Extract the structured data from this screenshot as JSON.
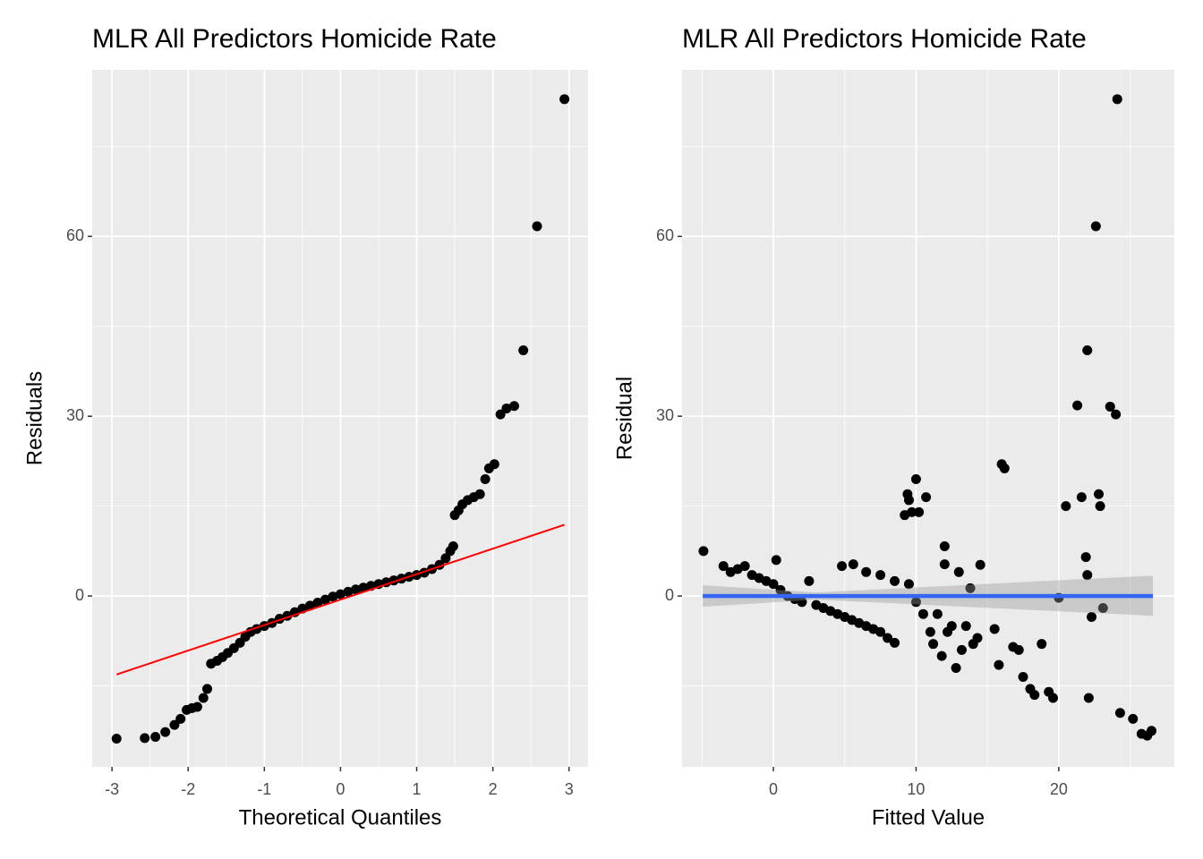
{
  "chart_data": [
    {
      "type": "scatter",
      "title": "MLR All Predictors Homicide Rate",
      "x_label": "Theoretical Quantiles",
      "y_label": "Residuals",
      "x": [
        -2.94,
        -2.57,
        -2.43,
        -2.3,
        -2.18,
        -2.1,
        -2.02,
        -1.95,
        -1.88,
        -1.8,
        -1.75,
        -1.7,
        -1.62,
        -1.55,
        -1.48,
        -1.4,
        -1.32,
        -1.25,
        -1.18,
        -1.1,
        -1.0,
        -0.9,
        -0.8,
        -0.7,
        -0.6,
        -0.5,
        -0.4,
        -0.3,
        -0.2,
        -0.1,
        0,
        0.1,
        0.2,
        0.3,
        0.4,
        0.5,
        0.6,
        0.7,
        0.8,
        0.9,
        1.0,
        1.1,
        1.2,
        1.3,
        1.38,
        1.44,
        1.48,
        1.5,
        1.55,
        1.6,
        1.67,
        1.75,
        1.83,
        1.9,
        1.95,
        2.02,
        2.1,
        2.18,
        2.28,
        2.4,
        2.58,
        2.94
      ],
      "y": [
        -23.8,
        -23.7,
        -23.5,
        -22.7,
        -21.5,
        -20.5,
        -19,
        -18.7,
        -18.5,
        -17,
        -15.5,
        -11.3,
        -10.8,
        -10.2,
        -9.5,
        -8.7,
        -7.8,
        -6.8,
        -6.0,
        -5.5,
        -5.0,
        -4.5,
        -3.8,
        -3.3,
        -2.7,
        -2.1,
        -1.6,
        -1.1,
        -0.6,
        -0.1,
        0.3,
        0.7,
        1.1,
        1.4,
        1.7,
        2.0,
        2.3,
        2.6,
        2.9,
        3.2,
        3.5,
        3.9,
        4.5,
        5.2,
        6.3,
        7.5,
        8.3,
        13.5,
        14.3,
        15.3,
        16.0,
        16.5,
        17.0,
        19.5,
        21.3,
        22.0,
        30.3,
        31.3,
        31.7,
        41,
        61.7,
        82.9
      ],
      "color": "#000000",
      "reference_line": {
        "x": [
          -2.94,
          2.94
        ],
        "y": [
          -13.1,
          11.9
        ],
        "color": "#ff0000"
      },
      "xlim": [
        -3.26,
        3.25
      ],
      "ylim": [
        -28.5,
        87.8
      ],
      "xticks": [
        -3,
        -2,
        -1,
        0,
        1,
        2,
        3
      ],
      "yticks": [
        0,
        30,
        60
      ],
      "grid": true
    },
    {
      "type": "scatter",
      "title": "MLR All Predictors Homicide Rate",
      "x_label": "Fitted Value",
      "y_label": "Residual",
      "x": [
        -4.9,
        -3.5,
        -3,
        -2.5,
        -2,
        -1.5,
        -1,
        -0.5,
        0,
        0.2,
        0.5,
        1,
        1.5,
        2,
        2.5,
        3,
        3.5,
        4,
        4.5,
        5,
        5.5,
        6,
        6.5,
        7,
        7.5,
        8,
        8.5,
        4.8,
        5.6,
        6.5,
        7.5,
        8.5,
        9.2,
        9.4,
        9.5,
        9.7,
        10,
        10.2,
        10.7,
        9.5,
        10,
        10.5,
        11,
        11.2,
        11.5,
        11.8,
        12,
        12,
        12.2,
        12.5,
        12.8,
        13,
        13.2,
        13.5,
        13.8,
        14,
        14.3,
        14.5,
        15.5,
        15.8,
        16,
        16.2,
        16.8,
        17.2,
        17.5,
        18,
        18.3,
        18.8,
        19.3,
        19.6,
        20,
        20.5,
        21.3,
        21.6,
        21.9,
        22,
        22,
        22.1,
        22.3,
        22.6,
        22.8,
        22.9,
        23.1,
        23.6,
        24,
        24.1,
        24.3,
        25.2,
        25.8,
        26.2,
        26.5
      ],
      "y": [
        7.5,
        5,
        4,
        4.5,
        5,
        3.5,
        3,
        2.5,
        2,
        6,
        1,
        0,
        -0.5,
        -1,
        2.5,
        -1.5,
        -2,
        -2.5,
        -3,
        -3.5,
        -4,
        -4.5,
        -5,
        -5.5,
        -6,
        -7,
        -7.8,
        5,
        5.3,
        4,
        3.5,
        2.5,
        13.5,
        17,
        16,
        14,
        19.5,
        14,
        16.5,
        2,
        -1,
        -3,
        -6,
        -8,
        -3,
        -10,
        8.3,
        5.3,
        -6,
        -5,
        -12,
        4,
        -9,
        -5,
        1.3,
        -8,
        -7,
        5.2,
        -5.5,
        -11.5,
        22,
        21.3,
        -8.5,
        -9,
        -13.5,
        -15.5,
        -16.5,
        -8,
        -16,
        -17,
        -0.3,
        15,
        31.8,
        16.5,
        6.5,
        41,
        3.5,
        -17,
        -3.5,
        61.7,
        17,
        15,
        -2,
        31.6,
        30.3,
        82.9,
        -19.5,
        -20.5,
        -23,
        -23.3,
        -22.5
      ],
      "color": "#000000",
      "smooth": {
        "x": [
          -4.95,
          3,
          26.6
        ],
        "y": [
          0,
          0,
          0
        ],
        "lower": [
          -1.8,
          -0.6,
          -3.3
        ],
        "upper": [
          1.8,
          0.6,
          3.4
        ],
        "color": "#3366ff",
        "fill": "#999999"
      },
      "xlim": [
        -6.4,
        28.1
      ],
      "ylim": [
        -28.5,
        87.8
      ],
      "xticks": [
        0,
        10,
        20
      ],
      "yticks": [
        0,
        30,
        60
      ],
      "grid": true
    }
  ]
}
